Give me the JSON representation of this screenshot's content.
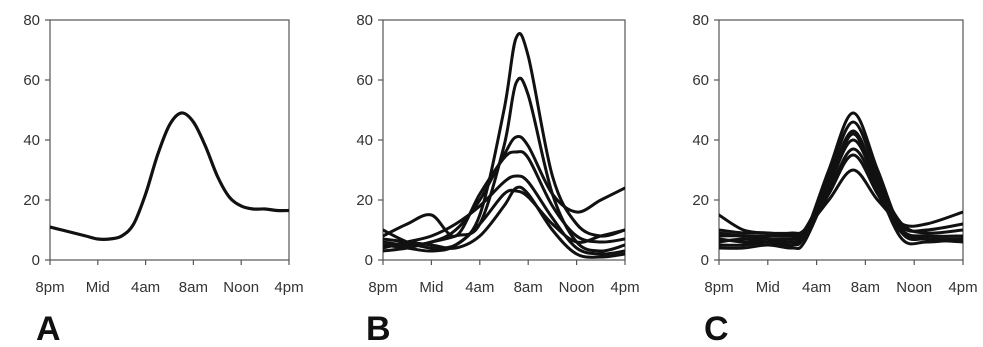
{
  "colors": {
    "line": "#111111",
    "frame": "#555555",
    "text": "#333333"
  },
  "chart_data": [
    {
      "type": "line",
      "panel_label": "A",
      "x_ticks": [
        "8pm",
        "Mid",
        "4am",
        "8am",
        "Noon",
        "4pm"
      ],
      "y_ticks": [
        "0",
        "20",
        "40",
        "60",
        "80"
      ],
      "xlim": [
        0,
        20
      ],
      "ylim": [
        0,
        80
      ],
      "grid": false,
      "series": [
        {
          "x": [
            0,
            1,
            2,
            3,
            4,
            5,
            6,
            7,
            8,
            9,
            10,
            11,
            12,
            13,
            14,
            15,
            16,
            17,
            18,
            19,
            20
          ],
          "values": [
            11,
            10,
            9,
            8,
            7,
            7,
            8,
            12,
            22,
            35,
            45,
            49,
            46,
            38,
            28,
            21,
            18,
            17,
            17,
            16.5,
            16.5
          ]
        }
      ]
    },
    {
      "type": "line",
      "panel_label": "B",
      "x_ticks": [
        "8pm",
        "Mid",
        "4am",
        "8am",
        "Noon",
        "4pm"
      ],
      "y_ticks": [
        "0",
        "20",
        "40",
        "60",
        "80"
      ],
      "xlim": [
        0,
        20
      ],
      "ylim": [
        0,
        80
      ],
      "grid": false,
      "series": [
        {
          "x": [
            0,
            2,
            4,
            6,
            8,
            10,
            11,
            12,
            14,
            16,
            18,
            20
          ],
          "values": [
            5,
            4,
            3,
            5,
            15,
            50,
            74,
            68,
            28,
            12,
            8,
            10
          ]
        },
        {
          "x": [
            0,
            2,
            4,
            6,
            8,
            10,
            11,
            12,
            14,
            16,
            18,
            20
          ],
          "values": [
            3,
            4,
            6,
            8,
            12,
            38,
            59,
            55,
            22,
            6,
            3,
            5
          ]
        },
        {
          "x": [
            0,
            2,
            4,
            6,
            8,
            10,
            11,
            12,
            14,
            16,
            18,
            20
          ],
          "values": [
            6,
            5,
            6,
            10,
            20,
            35,
            41,
            38,
            22,
            16,
            20,
            24
          ]
        },
        {
          "x": [
            0,
            2,
            4,
            6,
            8,
            10,
            11,
            12,
            14,
            16,
            18,
            20
          ],
          "values": [
            8,
            12,
            15,
            8,
            22,
            34,
            36,
            34,
            18,
            8,
            6,
            7
          ]
        },
        {
          "x": [
            0,
            2,
            4,
            6,
            8,
            10,
            11,
            12,
            14,
            16,
            18,
            20
          ],
          "values": [
            4,
            6,
            8,
            12,
            18,
            26,
            28,
            26,
            14,
            4,
            2,
            3
          ]
        },
        {
          "x": [
            0,
            2,
            4,
            6,
            8,
            10,
            11,
            12,
            14,
            16,
            18,
            20
          ],
          "values": [
            7,
            6,
            5,
            4,
            8,
            18,
            24,
            22,
            10,
            2,
            1,
            2
          ]
        },
        {
          "x": [
            0,
            2,
            4,
            6,
            8,
            10,
            11,
            12,
            14,
            16,
            18,
            20
          ],
          "values": [
            10,
            6,
            4,
            5,
            12,
            22,
            23,
            21,
            12,
            6,
            8,
            10
          ]
        }
      ]
    },
    {
      "type": "line",
      "panel_label": "C",
      "x_ticks": [
        "8pm",
        "Mid",
        "4am",
        "8am",
        "Noon",
        "4pm"
      ],
      "y_ticks": [
        "0",
        "20",
        "40",
        "60",
        "80"
      ],
      "xlim": [
        0,
        20
      ],
      "ylim": [
        0,
        80
      ],
      "grid": false,
      "series": [
        {
          "x": [
            0,
            2,
            4,
            6,
            7,
            9,
            11,
            13,
            15,
            17,
            20
          ],
          "values": [
            5,
            5,
            6,
            6,
            8,
            30,
            49,
            30,
            10,
            8,
            8
          ]
        },
        {
          "x": [
            0,
            2,
            4,
            6,
            7,
            9,
            11,
            13,
            15,
            17,
            20
          ],
          "values": [
            6,
            7,
            6,
            5,
            8,
            28,
            46,
            28,
            9,
            7,
            7
          ]
        },
        {
          "x": [
            0,
            2,
            4,
            6,
            7,
            9,
            11,
            13,
            15,
            17,
            20
          ],
          "values": [
            8,
            8,
            7,
            7,
            9,
            26,
            43,
            26,
            12,
            9,
            10
          ]
        },
        {
          "x": [
            0,
            2,
            4,
            6,
            7,
            9,
            11,
            13,
            15,
            17,
            20
          ],
          "values": [
            9,
            8,
            8,
            8,
            10,
            25,
            40,
            25,
            10,
            8,
            8
          ]
        },
        {
          "x": [
            0,
            2,
            4,
            6,
            7,
            9,
            11,
            13,
            15,
            17,
            20
          ],
          "values": [
            10,
            9,
            9,
            8,
            9,
            23,
            37,
            24,
            11,
            10,
            12
          ]
        },
        {
          "x": [
            0,
            2,
            4,
            6,
            7,
            9,
            11,
            13,
            15,
            17,
            20
          ],
          "values": [
            7,
            6,
            6,
            6,
            8,
            22,
            35,
            22,
            9,
            7,
            6
          ]
        },
        {
          "x": [
            0,
            2,
            4,
            6,
            7,
            9,
            11,
            13,
            15,
            17,
            20
          ],
          "values": [
            15,
            10,
            9,
            9,
            10,
            20,
            30,
            20,
            12,
            12,
            16
          ]
        },
        {
          "x": [
            0,
            2,
            4,
            6,
            7,
            9,
            11,
            13,
            15,
            17,
            20
          ],
          "values": [
            4,
            4,
            5,
            4,
            6,
            24,
            42,
            24,
            7,
            6,
            7
          ]
        }
      ]
    }
  ]
}
